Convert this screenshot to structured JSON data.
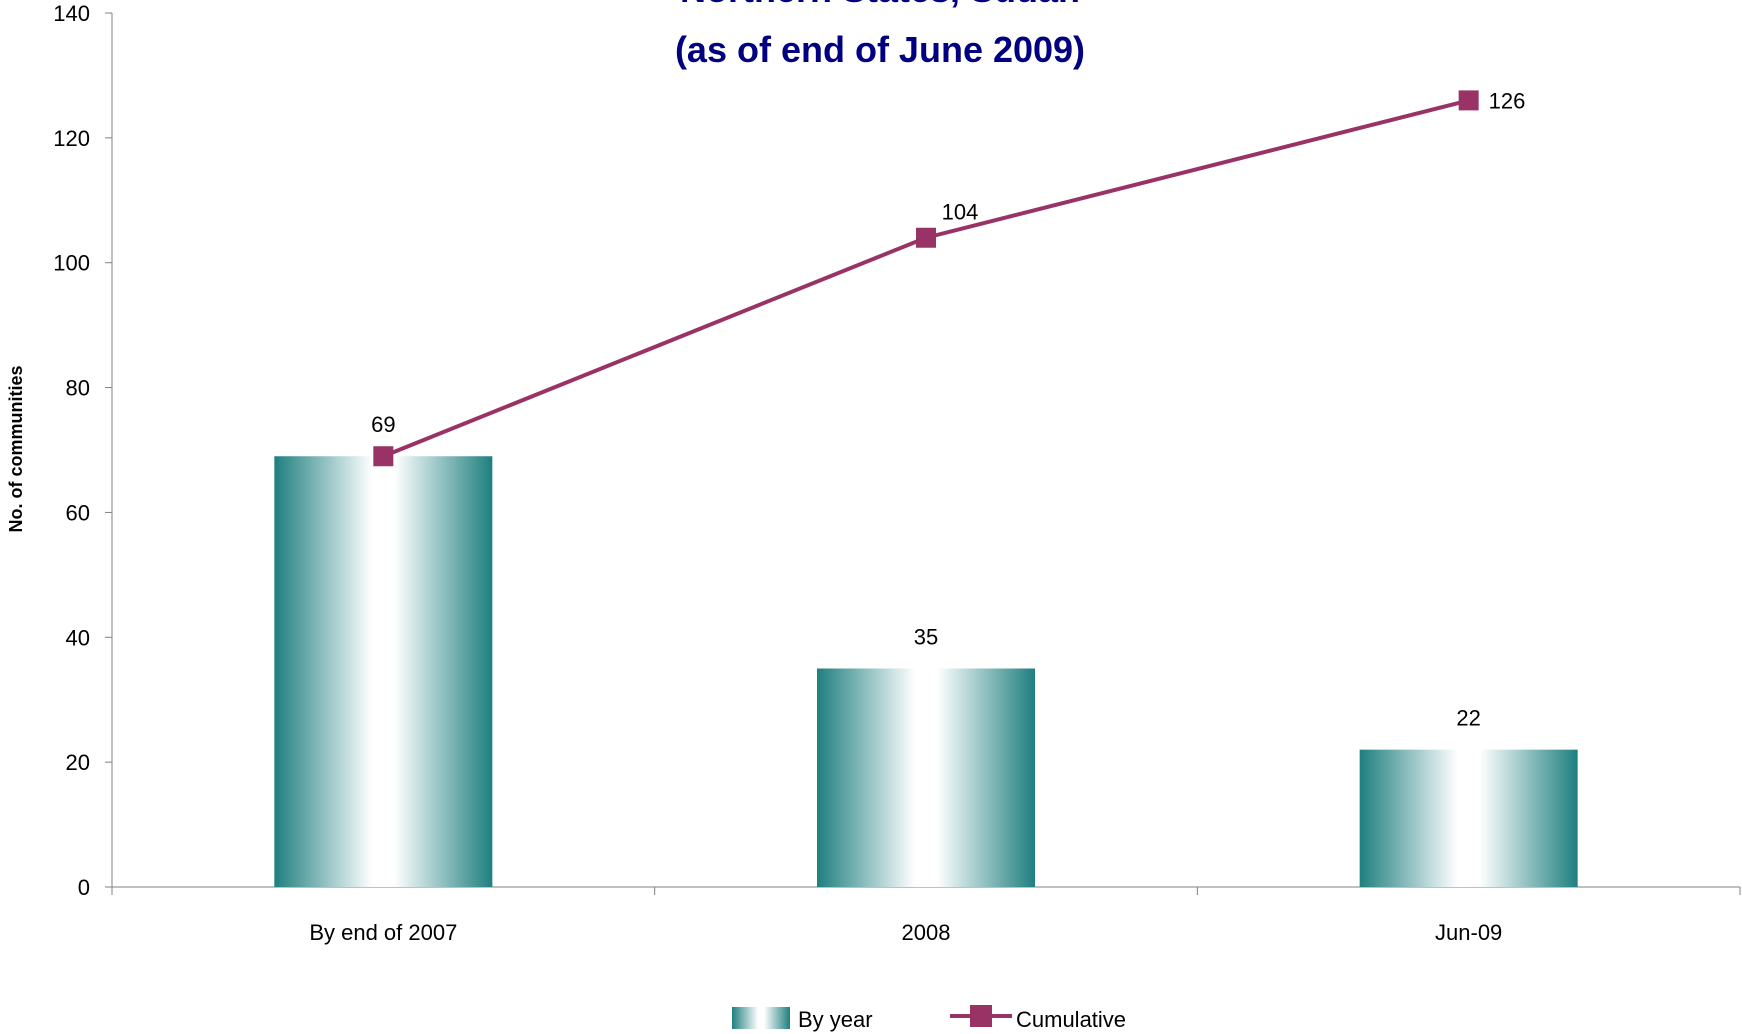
{
  "chart_data": {
    "type": "bar",
    "title_lines": [
      "Northern States, Sudan",
      "(as of end of June 2009)"
    ],
    "xlabel": "",
    "ylabel": "No. of communities",
    "categories": [
      "By end of 2007",
      "2008",
      "Jun-09"
    ],
    "ylim": [
      0,
      140
    ],
    "yticks": [
      0,
      20,
      40,
      60,
      80,
      100,
      120,
      140
    ],
    "grid": false,
    "legend_position": "bottom",
    "series": [
      {
        "name": "By year",
        "type": "bar",
        "values": [
          69,
          35,
          22
        ],
        "color": "#1F7F7F"
      },
      {
        "name": "Cumulative",
        "type": "line",
        "values": [
          69,
          104,
          126
        ],
        "color": "#993366",
        "marker": "square"
      }
    ]
  }
}
